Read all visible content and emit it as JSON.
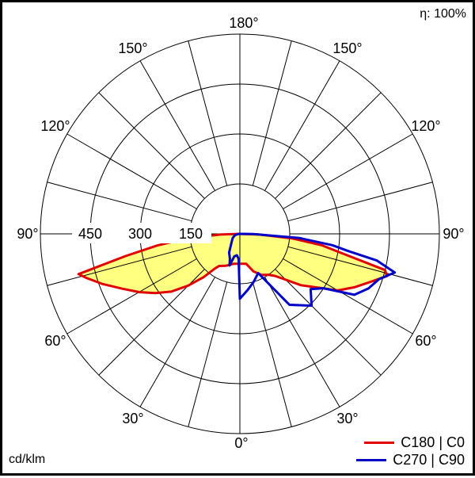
{
  "header": {
    "efficiency_label": "η: 100%"
  },
  "footer": {
    "unit_label": "cd/klm"
  },
  "colors": {
    "c0": "#e00000",
    "c90": "#0000c8",
    "fill": "#ffff80",
    "grid": "#000000"
  },
  "chart_data": {
    "type": "polar",
    "radial_ticks": [
      "150",
      "300",
      "450"
    ],
    "radial_values": [
      150,
      300,
      450
    ],
    "radial_max": 600,
    "angle_tick_labels": {
      "top": "180°",
      "upper_left": "150°",
      "upper_right": "150°",
      "mid_left_high": "120°",
      "mid_right_high": "120°",
      "left": "90°",
      "right": "90°",
      "lower_left": "60°",
      "lower_right": "60°",
      "bottom_left": "30°",
      "bottom_right": "30°",
      "bottom": "0°"
    },
    "legend_position": "bottom-right",
    "series": [
      {
        "name": "C180 | C0",
        "color": "#e00000",
        "left": [
          [
            0,
            90
          ],
          [
            12,
            92
          ],
          [
            24,
            105
          ],
          [
            33,
            115
          ],
          [
            36,
            130
          ],
          [
            40,
            170
          ],
          [
            45,
            220
          ],
          [
            50,
            270
          ],
          [
            55,
            310
          ],
          [
            60,
            350
          ],
          [
            65,
            390
          ],
          [
            70,
            440
          ],
          [
            74,
            480
          ],
          [
            76,
            500
          ],
          [
            79,
            350
          ],
          [
            82,
            250
          ],
          [
            85,
            160
          ],
          [
            88,
            60
          ],
          [
            90,
            0
          ]
        ],
        "right": [
          [
            0,
            90
          ],
          [
            12,
            92
          ],
          [
            20,
            120
          ],
          [
            28,
            140
          ],
          [
            35,
            150
          ],
          [
            40,
            165
          ],
          [
            45,
            195
          ],
          [
            50,
            240
          ],
          [
            55,
            280
          ],
          [
            60,
            340
          ],
          [
            65,
            380
          ],
          [
            70,
            420
          ],
          [
            74,
            460
          ],
          [
            76,
            450
          ],
          [
            79,
            320
          ],
          [
            82,
            250
          ],
          [
            85,
            160
          ],
          [
            88,
            60
          ],
          [
            90,
            0
          ]
        ]
      },
      {
        "name": "C270 | C90",
        "color": "#0000c8",
        "left": [
          [
            0,
            195
          ],
          [
            3,
            75
          ],
          [
            8,
            65
          ],
          [
            14,
            70
          ],
          [
            18,
            100
          ],
          [
            22,
            80
          ],
          [
            30,
            65
          ],
          [
            45,
            35
          ],
          [
            60,
            25
          ],
          [
            75,
            15
          ],
          [
            88,
            5
          ],
          [
            90,
            0
          ]
        ],
        "right": [
          [
            0,
            195
          ],
          [
            8,
            170
          ],
          [
            16,
            150
          ],
          [
            25,
            130
          ],
          [
            35,
            260
          ],
          [
            45,
            305
          ],
          [
            52,
            270
          ],
          [
            57,
            300
          ],
          [
            62,
            390
          ],
          [
            67,
            420
          ],
          [
            72,
            440
          ],
          [
            76,
            480
          ],
          [
            79,
            420
          ],
          [
            81,
            330
          ],
          [
            83,
            280
          ],
          [
            86,
            180
          ],
          [
            89,
            40
          ],
          [
            90,
            0
          ]
        ]
      }
    ]
  }
}
